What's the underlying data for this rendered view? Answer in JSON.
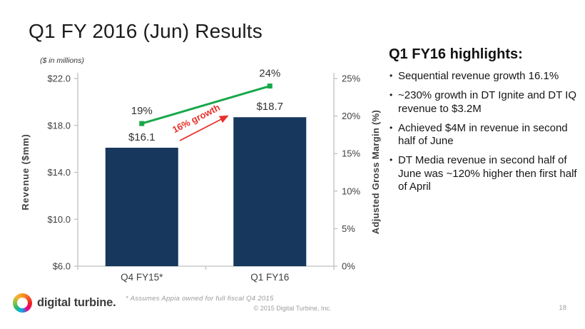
{
  "slide": {
    "title": "Q1 FY 2016 (Jun) Results",
    "page_number": "18",
    "footnote": "* Assumes Appia owned for full fiscal Q4 2015",
    "copyright": "© 2015 Digital Turbine, Inc.",
    "logo_text": "digital turbine."
  },
  "highlights": {
    "heading": "Q1 FY16 highlights:",
    "bullets": [
      "Sequential revenue growth 16.1%",
      "~230% growth in DT Ignite and DT IQ revenue to $3.2M",
      "Achieved $4M in revenue in second half of June",
      "DT Media revenue in second half of June was ~120% higher then first half of April"
    ]
  },
  "chart_data": {
    "type": "bar",
    "subtype": "bar-line-combo",
    "units_note": "($ in millions)",
    "categories": [
      "Q4 FY15*",
      "Q1 FY16"
    ],
    "series": [
      {
        "name": "Revenue",
        "kind": "bar",
        "axis": "left",
        "values": [
          16.1,
          18.7
        ],
        "labels": [
          "$16.1",
          "$18.7"
        ],
        "color": "#17375D"
      },
      {
        "name": "Adjusted Gross Margin",
        "kind": "line",
        "axis": "right",
        "values": [
          19,
          24
        ],
        "labels": [
          "19%",
          "24%"
        ],
        "color": "#18A84B"
      }
    ],
    "left_axis": {
      "title": "Revenue ($mm)",
      "ticks": [
        "$22.0",
        "$18.0",
        "$14.0",
        "$10.0",
        "$6.0"
      ],
      "min": 6,
      "max": 22
    },
    "right_axis": {
      "title": "Adjusted Gross Margin (%)",
      "ticks": [
        "25%",
        "20%",
        "15%",
        "10%",
        "5%",
        "0%"
      ],
      "min": 0,
      "max": 25
    },
    "annotation": {
      "text": "16% growth",
      "color": "#E8312A"
    },
    "grid": false,
    "legend": false
  }
}
